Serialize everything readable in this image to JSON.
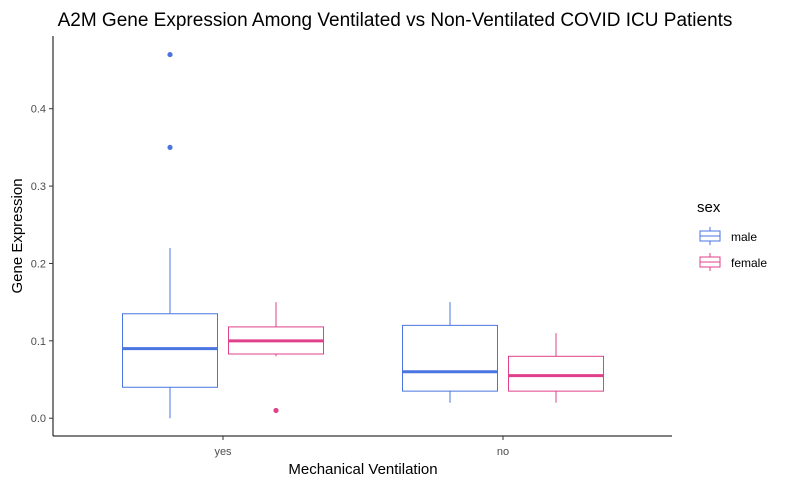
{
  "chart_data": {
    "type": "boxplot",
    "title": "A2M Gene Expression Among Ventilated vs Non-Ventilated COVID ICU Patients",
    "xlabel": "Mechanical Ventilation",
    "ylabel": "Gene Expression",
    "categories": [
      "yes",
      "no"
    ],
    "ylim": [
      -0.023,
      0.494
    ],
    "yticks": [
      0.0,
      0.1,
      0.2,
      0.3,
      0.4
    ],
    "ytick_labels": [
      "0.0",
      "0.1",
      "0.2",
      "0.3",
      "0.4"
    ],
    "grid": false,
    "legend": {
      "title": "sex",
      "placement": "right"
    },
    "series": [
      {
        "name": "male",
        "color": "#4a75e0",
        "boxes": [
          {
            "category": "yes",
            "min": 0.0,
            "q1": 0.04,
            "median": 0.09,
            "q3": 0.135,
            "max": 0.22,
            "outliers": [
              0.35,
              0.47
            ]
          },
          {
            "category": "no",
            "min": 0.02,
            "q1": 0.035,
            "median": 0.06,
            "q3": 0.12,
            "max": 0.15,
            "outliers": []
          }
        ]
      },
      {
        "name": "female",
        "color": "#e0418a",
        "boxes": [
          {
            "category": "yes",
            "min": 0.08,
            "q1": 0.083,
            "median": 0.1,
            "q3": 0.118,
            "max": 0.15,
            "outliers": [
              0.01
            ]
          },
          {
            "category": "no",
            "min": 0.02,
            "q1": 0.035,
            "median": 0.055,
            "q3": 0.08,
            "max": 0.11,
            "outliers": []
          }
        ]
      }
    ]
  }
}
